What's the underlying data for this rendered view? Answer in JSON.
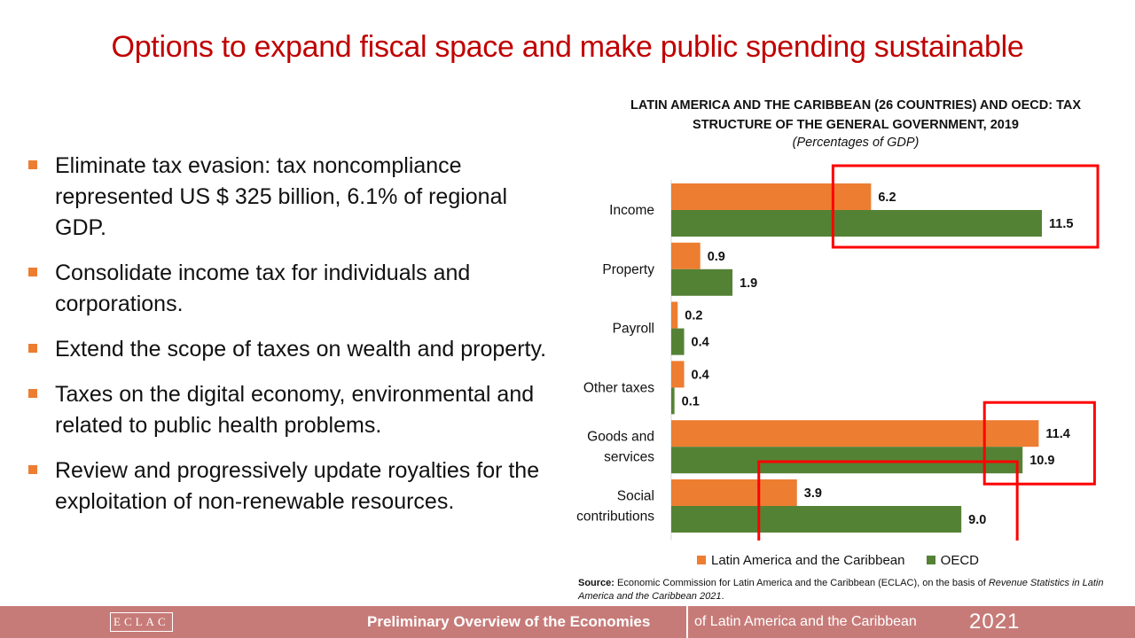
{
  "slide": {
    "title": "Options to expand fiscal space and make public spending sustainable",
    "bullets": [
      "Eliminate tax evasion: tax noncompliance represented US $ 325 billion, 6.1% of regional GDP.",
      "Consolidate income tax for individuals and corporations.",
      "Extend the scope of taxes on wealth and property.",
      "Taxes on the digital economy, environmental and related to public health problems.",
      "Review and progressively update royalties for the exploitation of non-renewable resources."
    ]
  },
  "chart_data": {
    "type": "bar",
    "orientation": "horizontal",
    "title_line1": "LATIN AMERICA AND THE CARIBBEAN (26 COUNTRIES) AND OECD: TAX",
    "title_line2": "STRUCTURE OF THE GENERAL GOVERNMENT, 2019",
    "subtitle": "(Percentages of GDP)",
    "categories": [
      [
        "Income"
      ],
      [
        "Property"
      ],
      [
        "Payroll"
      ],
      [
        "Other taxes"
      ],
      [
        "Goods and",
        "services"
      ],
      [
        "Social",
        "contributions"
      ]
    ],
    "series": [
      {
        "name": "Latin America and the Caribbean",
        "color": "#ed7d31",
        "values": [
          6.2,
          0.9,
          0.2,
          0.4,
          11.4,
          3.9
        ]
      },
      {
        "name": "OECD",
        "color": "#548235",
        "values": [
          11.5,
          1.9,
          0.4,
          0.1,
          10.9,
          9.0
        ]
      }
    ],
    "value_labels": [
      [
        "6.2",
        "0.9",
        "0.2",
        "0.4",
        "11.4",
        "3.9"
      ],
      [
        "11.5",
        "1.9",
        "0.4",
        "0.1",
        "10.9",
        "9.0"
      ]
    ],
    "xlim": [
      0,
      12.5
    ],
    "highlighted_categories": [
      0,
      4,
      5
    ],
    "highlight_color": "#ff0000",
    "legend_position": "bottom",
    "source_label": "Source:",
    "source_text": "Economic Commission for Latin America and the Caribbean (ECLAC), on the basis of",
    "source_italic": "Revenue Statistics in Latin America and the Caribbean 2021",
    "source_end": "."
  },
  "footer": {
    "logo": "ECLAC",
    "main": "Preliminary Overview of the Economies",
    "sub": "of Latin America and the Caribbean",
    "year": "2021",
    "background": "#c77b78"
  }
}
